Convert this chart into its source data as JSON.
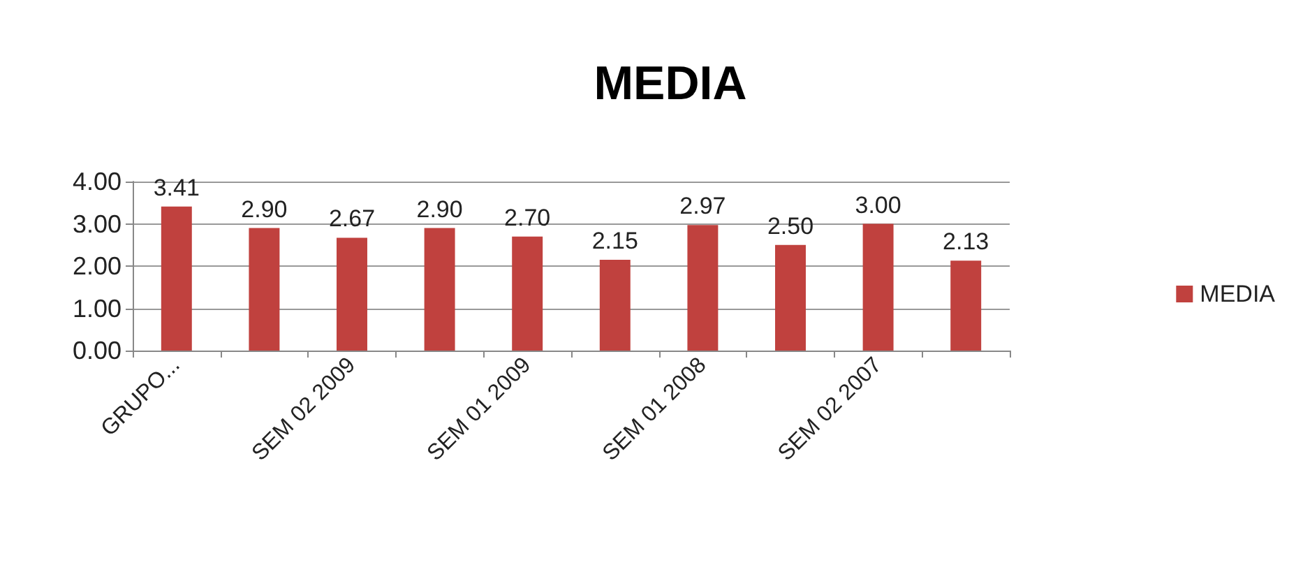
{
  "chart_data": {
    "type": "bar",
    "title": "MEDIA",
    "categories": [
      "GRUPO...",
      null,
      "SEM 02 2009",
      null,
      "SEM 01 2009",
      null,
      "SEM 01 2008",
      null,
      "SEM 02 2007",
      null
    ],
    "series": [
      {
        "name": "MEDIA",
        "color": "#c0413e",
        "values": [
          3.41,
          2.9,
          2.67,
          2.9,
          2.7,
          2.15,
          2.97,
          2.5,
          3.0,
          2.13
        ],
        "value_labels": [
          "3.41",
          "2.90",
          "2.67",
          "2.90",
          "2.70",
          "2.15",
          "2.97",
          "2.50",
          "3.00",
          "2.13"
        ]
      }
    ],
    "ylim": [
      0,
      4
    ],
    "yticks": [
      {
        "value": 0,
        "label": "0.00"
      },
      {
        "value": 1,
        "label": "1.00"
      },
      {
        "value": 2,
        "label": "2.00"
      },
      {
        "value": 3,
        "label": "3.00"
      },
      {
        "value": 4,
        "label": "4.00"
      }
    ],
    "grid": "y",
    "legend": "right"
  }
}
